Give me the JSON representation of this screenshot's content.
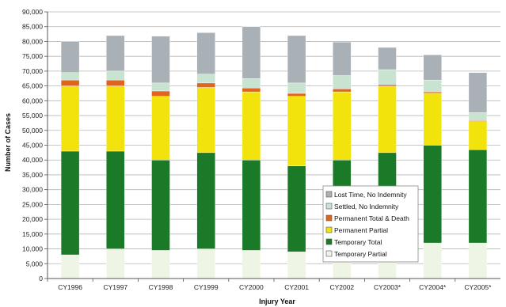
{
  "chart_data": {
    "type": "bar",
    "stacked": true,
    "title": "",
    "xlabel": "Injury Year",
    "ylabel": "Number of Cases",
    "ylim": [
      0,
      90000
    ],
    "ytick_step": 5000,
    "grid": true,
    "legend_position": "bottom-right",
    "categories": [
      "CY1996",
      "CY1997",
      "CY1998",
      "CY1999",
      "CY2000",
      "CY2001",
      "CY2002",
      "CY2003*",
      "CY2004*",
      "CY2005*"
    ],
    "ytick_labels": [
      "0",
      "5,000",
      "10,000",
      "15,000",
      "20,000",
      "25,000",
      "30,000",
      "35,000",
      "40,000",
      "45,000",
      "50,000",
      "55,000",
      "60,000",
      "65,000",
      "70,000",
      "75,000",
      "80,000",
      "85,000",
      "90,000"
    ],
    "series": [
      {
        "name": "Temporary Partial",
        "color": "#eef5e4",
        "values": [
          8000,
          10000,
          9500,
          10000,
          9500,
          9000,
          7000,
          7000,
          12000,
          12000
        ]
      },
      {
        "name": "Temporary Total",
        "color": "#1a7a28",
        "values": [
          35000,
          33000,
          30500,
          32500,
          30500,
          29000,
          33000,
          35500,
          33000,
          31500
        ]
      },
      {
        "name": "Permanent Partial",
        "color": "#f2e30c",
        "values": [
          22000,
          22000,
          21500,
          22000,
          23000,
          23500,
          23000,
          22500,
          17500,
          9500
        ]
      },
      {
        "name": "Permanent Total & Death",
        "color": "#e0641e",
        "values": [
          2000,
          2000,
          1800,
          1500,
          1300,
          1000,
          1000,
          500,
          500,
          300
        ]
      },
      {
        "name": "Settled, No Indemnity",
        "color": "#c8e4d0",
        "values": [
          2500,
          3000,
          2700,
          3000,
          3200,
          3500,
          4500,
          5000,
          4000,
          2700
        ]
      },
      {
        "name": "Lost Time, No Indemnity",
        "color": "#aab1b6",
        "values": [
          10500,
          12000,
          15800,
          14000,
          17500,
          16000,
          11300,
          7500,
          8500,
          13500
        ]
      }
    ]
  }
}
